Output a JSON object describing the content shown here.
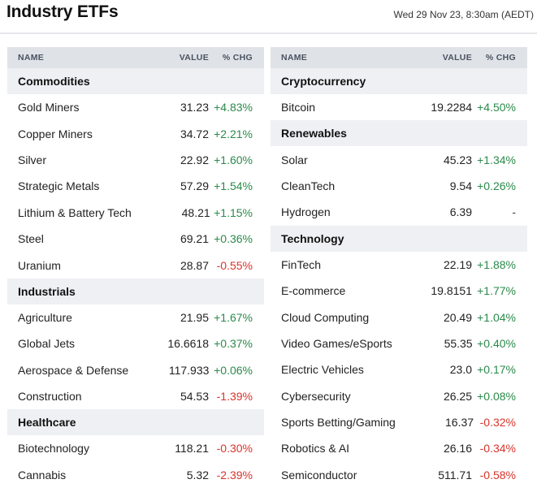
{
  "header": {
    "title": "Industry ETFs",
    "timestamp": "Wed 29 Nov 23, 8:30am (AEDT)"
  },
  "columns": {
    "name": "NAME",
    "value": "VALUE",
    "change": "% CHG"
  },
  "left": [
    {
      "type": "section",
      "label": "Commodities"
    },
    {
      "type": "row",
      "name": "Gold Miners",
      "value": "31.23",
      "change": "+4.83%",
      "trend": "pos"
    },
    {
      "type": "row",
      "name": "Copper Miners",
      "value": "34.72",
      "change": "+2.21%",
      "trend": "pos"
    },
    {
      "type": "row",
      "name": "Silver",
      "value": "22.92",
      "change": "+1.60%",
      "trend": "pos"
    },
    {
      "type": "row",
      "name": "Strategic Metals",
      "value": "57.29",
      "change": "+1.54%",
      "trend": "pos"
    },
    {
      "type": "row",
      "name": "Lithium & Battery Tech",
      "value": "48.21",
      "change": "+1.15%",
      "trend": "pos"
    },
    {
      "type": "row",
      "name": "Steel",
      "value": "69.21",
      "change": "+0.36%",
      "trend": "pos"
    },
    {
      "type": "row",
      "name": "Uranium",
      "value": "28.87",
      "change": "-0.55%",
      "trend": "neg"
    },
    {
      "type": "section",
      "label": "Industrials"
    },
    {
      "type": "row",
      "name": "Agriculture",
      "value": "21.95",
      "change": "+1.67%",
      "trend": "pos"
    },
    {
      "type": "row",
      "name": "Global Jets",
      "value": "16.6618",
      "change": "+0.37%",
      "trend": "pos"
    },
    {
      "type": "row",
      "name": "Aerospace & Defense",
      "value": "117.933",
      "change": "+0.06%",
      "trend": "pos"
    },
    {
      "type": "row",
      "name": "Construction",
      "value": "54.53",
      "change": "-1.39%",
      "trend": "neg"
    },
    {
      "type": "section",
      "label": "Healthcare"
    },
    {
      "type": "row",
      "name": "Biotechnology",
      "value": "118.21",
      "change": "-0.30%",
      "trend": "neg"
    },
    {
      "type": "row",
      "name": "Cannabis",
      "value": "5.32",
      "change": "-2.39%",
      "trend": "neg"
    }
  ],
  "right": [
    {
      "type": "section",
      "label": "Cryptocurrency"
    },
    {
      "type": "row",
      "name": "Bitcoin",
      "value": "19.2284",
      "change": "+4.50%",
      "trend": "pos"
    },
    {
      "type": "section",
      "label": "Renewables"
    },
    {
      "type": "row",
      "name": "Solar",
      "value": "45.23",
      "change": "+1.34%",
      "trend": "pos"
    },
    {
      "type": "row",
      "name": "CleanTech",
      "value": "9.54",
      "change": "+0.26%",
      "trend": "pos"
    },
    {
      "type": "row",
      "name": "Hydrogen",
      "value": "6.39",
      "change": "-",
      "trend": "neu"
    },
    {
      "type": "section",
      "label": "Technology"
    },
    {
      "type": "row",
      "name": "FinTech",
      "value": "22.19",
      "change": "+1.88%",
      "trend": "pos"
    },
    {
      "type": "row",
      "name": "E-commerce",
      "value": "19.8151",
      "change": "+1.77%",
      "trend": "pos"
    },
    {
      "type": "row",
      "name": "Cloud Computing",
      "value": "20.49",
      "change": "+1.04%",
      "trend": "pos"
    },
    {
      "type": "row",
      "name": "Video Games/eSports",
      "value": "55.35",
      "change": "+0.40%",
      "trend": "pos"
    },
    {
      "type": "row",
      "name": "Electric Vehicles",
      "value": "23.0",
      "change": "+0.17%",
      "trend": "pos"
    },
    {
      "type": "row",
      "name": "Cybersecurity",
      "value": "26.25",
      "change": "+0.08%",
      "trend": "pos"
    },
    {
      "type": "row",
      "name": "Sports Betting/Gaming",
      "value": "16.37",
      "change": "-0.32%",
      "trend": "neg"
    },
    {
      "type": "row",
      "name": "Robotics & AI",
      "value": "26.16",
      "change": "-0.34%",
      "trend": "neg"
    },
    {
      "type": "row",
      "name": "Semiconductor",
      "value": "511.71",
      "change": "-0.58%",
      "trend": "neg"
    }
  ],
  "colors": {
    "positive": "#2a8a4a",
    "negative": "#d9342b",
    "header_bg": "#dfe3e8",
    "section_bg": "#eef0f3"
  }
}
